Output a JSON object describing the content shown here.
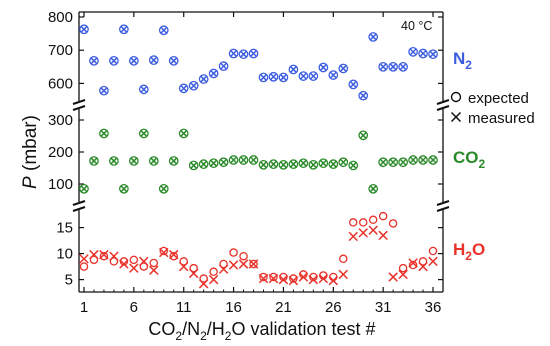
{
  "chart_data": {
    "type": "scatter",
    "annotation": "40 °C",
    "xlabel": {
      "pre": "CO",
      "s1": "2",
      "m1": "/N",
      "s2": "2",
      "m2": "/H",
      "s3": "2",
      "post": "O validation test #"
    },
    "ylabel": {
      "italic": "P",
      "rest": " (mbar)"
    },
    "x_ticks": [
      1,
      6,
      11,
      16,
      21,
      26,
      31,
      36
    ],
    "legend": {
      "expected": "expected",
      "measured": "measured"
    },
    "panels": [
      {
        "name": "N2",
        "label": {
          "base": "N",
          "sub": "2"
        },
        "color": "#3c5de0",
        "y_ticks": [
          600,
          700,
          800
        ],
        "ylim": [
          550,
          800
        ],
        "expected": [
          763,
          668,
          578,
          668,
          763,
          668,
          582,
          670,
          760,
          668,
          585,
          593,
          613,
          630,
          652,
          690,
          688,
          690,
          618,
          620,
          618,
          642,
          622,
          622,
          648,
          625,
          645,
          597,
          563,
          740,
          650,
          650,
          650,
          695,
          690,
          688
        ],
        "measured": [
          763,
          668,
          578,
          668,
          763,
          668,
          582,
          670,
          760,
          668,
          585,
          593,
          613,
          630,
          652,
          690,
          688,
          690,
          618,
          620,
          618,
          642,
          622,
          622,
          648,
          625,
          645,
          597,
          563,
          740,
          650,
          650,
          650,
          695,
          690,
          688
        ]
      },
      {
        "name": "CO2",
        "label": {
          "base": "CO",
          "sub": "2"
        },
        "color": "#2a8a2a",
        "y_ticks": [
          100,
          200,
          300
        ],
        "ylim": [
          50,
          325
        ],
        "expected": [
          85,
          172,
          258,
          172,
          85,
          172,
          258,
          172,
          85,
          172,
          258,
          158,
          162,
          165,
          168,
          175,
          175,
          175,
          160,
          162,
          160,
          162,
          165,
          160,
          165,
          162,
          168,
          158,
          252,
          85,
          168,
          168,
          168,
          175,
          175,
          175
        ],
        "measured": [
          85,
          172,
          258,
          172,
          85,
          172,
          258,
          172,
          85,
          172,
          258,
          158,
          162,
          165,
          168,
          175,
          175,
          175,
          160,
          162,
          160,
          162,
          165,
          160,
          165,
          162,
          168,
          158,
          252,
          85,
          168,
          168,
          168,
          175,
          175,
          175
        ]
      },
      {
        "name": "H2O",
        "label": {
          "base": "H",
          "sub": "2",
          "post": "O"
        },
        "color": "#e8322a",
        "y_ticks": [
          5,
          10,
          15
        ],
        "ylim": [
          3,
          18
        ],
        "expected": [
          7.5,
          8.8,
          9.5,
          8.5,
          8.5,
          8.8,
          7.5,
          8.2,
          10.5,
          9.5,
          8.5,
          7.2,
          5.2,
          6.5,
          8.0,
          10.2,
          9.5,
          8.0,
          5.5,
          5.5,
          5.5,
          5.2,
          6.0,
          5.5,
          5.8,
          5.5,
          9.0,
          16.0,
          16.0,
          16.5,
          17.2,
          15.8,
          7.2,
          7.8,
          8.5,
          10.5
        ],
        "measured": [
          9.0,
          9.8,
          9.8,
          9.5,
          8.0,
          7.2,
          8.5,
          6.8,
          10.2,
          9.8,
          7.5,
          6.2,
          4.2,
          5.0,
          7.0,
          7.8,
          8.0,
          8.0,
          5.2,
          5.2,
          5.0,
          4.8,
          5.5,
          5.0,
          5.2,
          4.8,
          6.0,
          13.3,
          14.0,
          14.5,
          13.5,
          5.5,
          6.0,
          8.2,
          7.5,
          8.5
        ]
      }
    ]
  }
}
